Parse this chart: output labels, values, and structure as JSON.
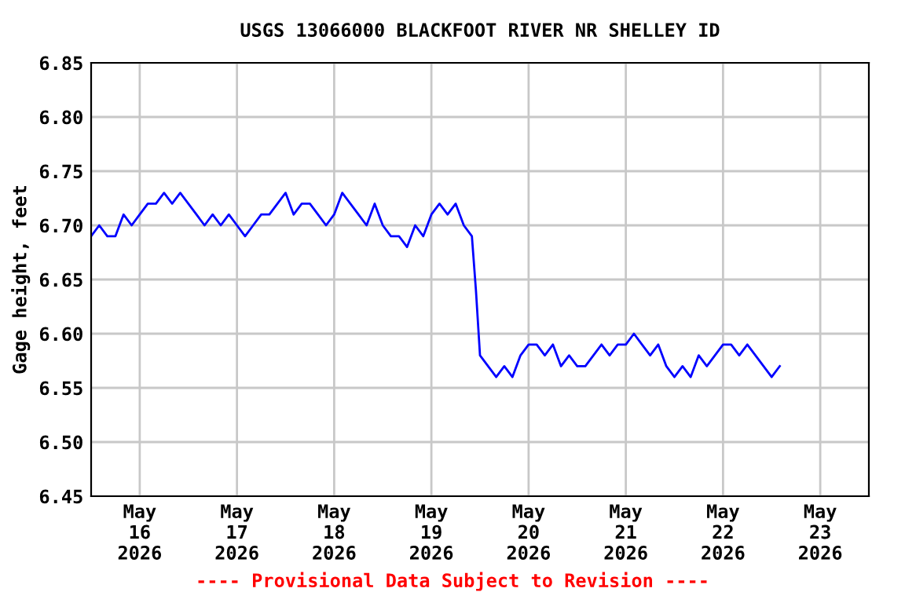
{
  "chart_data": {
    "type": "line",
    "title": "USGS 13066000 BLACKFOOT RIVER NR SHELLEY ID",
    "ylabel": "Gage height, feet",
    "annotations": [
      "---- Provisional Data Subject to Revision ----"
    ],
    "series": [
      {
        "color": "#0000ff",
        "x": [
          "2026-05-15T12:00",
          "2026-05-15T14:00",
          "2026-05-15T16:00",
          "2026-05-15T18:00",
          "2026-05-15T20:00",
          "2026-05-15T22:00",
          "2026-05-16T00:00",
          "2026-05-16T02:00",
          "2026-05-16T04:00",
          "2026-05-16T06:00",
          "2026-05-16T08:00",
          "2026-05-16T10:00",
          "2026-05-16T12:00",
          "2026-05-16T14:00",
          "2026-05-16T16:00",
          "2026-05-16T18:00",
          "2026-05-16T20:00",
          "2026-05-16T22:00",
          "2026-05-17T00:00",
          "2026-05-17T02:00",
          "2026-05-17T04:00",
          "2026-05-17T06:00",
          "2026-05-17T08:00",
          "2026-05-17T10:00",
          "2026-05-17T12:00",
          "2026-05-17T14:00",
          "2026-05-17T16:00",
          "2026-05-17T18:00",
          "2026-05-17T20:00",
          "2026-05-17T22:00",
          "2026-05-18T00:00",
          "2026-05-18T02:00",
          "2026-05-18T04:00",
          "2026-05-18T06:00",
          "2026-05-18T08:00",
          "2026-05-18T10:00",
          "2026-05-18T12:00",
          "2026-05-18T14:00",
          "2026-05-18T16:00",
          "2026-05-18T18:00",
          "2026-05-18T20:00",
          "2026-05-18T22:00",
          "2026-05-19T00:00",
          "2026-05-19T02:00",
          "2026-05-19T04:00",
          "2026-05-19T06:00",
          "2026-05-19T08:00",
          "2026-05-19T10:00",
          "2026-05-19T11:00",
          "2026-05-19T12:00",
          "2026-05-19T14:00",
          "2026-05-19T16:00",
          "2026-05-19T18:00",
          "2026-05-19T20:00",
          "2026-05-19T22:00",
          "2026-05-20T00:00",
          "2026-05-20T02:00",
          "2026-05-20T04:00",
          "2026-05-20T06:00",
          "2026-05-20T08:00",
          "2026-05-20T10:00",
          "2026-05-20T12:00",
          "2026-05-20T14:00",
          "2026-05-20T16:00",
          "2026-05-20T18:00",
          "2026-05-20T20:00",
          "2026-05-20T22:00",
          "2026-05-21T00:00",
          "2026-05-21T02:00",
          "2026-05-21T04:00",
          "2026-05-21T06:00",
          "2026-05-21T08:00",
          "2026-05-21T10:00",
          "2026-05-21T12:00",
          "2026-05-21T14:00",
          "2026-05-21T16:00",
          "2026-05-21T18:00",
          "2026-05-21T20:00",
          "2026-05-21T22:00",
          "2026-05-22T00:00",
          "2026-05-22T02:00",
          "2026-05-22T04:00",
          "2026-05-22T06:00",
          "2026-05-22T08:00",
          "2026-05-22T10:00",
          "2026-05-22T12:00",
          "2026-05-22T14:00"
        ],
        "values": [
          6.69,
          6.7,
          6.69,
          6.69,
          6.71,
          6.7,
          6.71,
          6.72,
          6.72,
          6.73,
          6.72,
          6.73,
          6.72,
          6.71,
          6.7,
          6.71,
          6.7,
          6.71,
          6.7,
          6.69,
          6.7,
          6.71,
          6.71,
          6.72,
          6.73,
          6.71,
          6.72,
          6.72,
          6.71,
          6.7,
          6.71,
          6.73,
          6.72,
          6.71,
          6.7,
          6.72,
          6.7,
          6.69,
          6.69,
          6.68,
          6.7,
          6.69,
          6.71,
          6.72,
          6.71,
          6.72,
          6.7,
          6.69,
          6.64,
          6.58,
          6.57,
          6.56,
          6.57,
          6.56,
          6.58,
          6.59,
          6.59,
          6.58,
          6.59,
          6.57,
          6.58,
          6.57,
          6.57,
          6.58,
          6.59,
          6.58,
          6.59,
          6.59,
          6.6,
          6.59,
          6.58,
          6.59,
          6.57,
          6.56,
          6.57,
          6.56,
          6.58,
          6.57,
          6.58,
          6.59,
          6.59,
          6.58,
          6.59,
          6.58,
          6.57,
          6.56,
          6.57
        ]
      }
    ],
    "xlim": [
      "2026-05-15T12:00",
      "2026-05-23T12:00"
    ],
    "xticks": [
      {
        "value": "2026-05-16",
        "label": "May\n16\n2026"
      },
      {
        "value": "2026-05-17",
        "label": "May\n17\n2026"
      },
      {
        "value": "2026-05-18",
        "label": "May\n18\n2026"
      },
      {
        "value": "2026-05-19",
        "label": "May\n19\n2026"
      },
      {
        "value": "2026-05-20",
        "label": "May\n20\n2026"
      },
      {
        "value": "2026-05-21",
        "label": "May\n21\n2026"
      },
      {
        "value": "2026-05-22",
        "label": "May\n22\n2026"
      },
      {
        "value": "2026-05-23",
        "label": "May\n23\n2026"
      }
    ],
    "ylim": [
      6.45,
      6.85
    ],
    "yticks": [
      {
        "value": 6.45,
        "label": "6.45"
      },
      {
        "value": 6.5,
        "label": "6.50"
      },
      {
        "value": 6.55,
        "label": "6.55"
      },
      {
        "value": 6.6,
        "label": "6.60"
      },
      {
        "value": 6.65,
        "label": "6.65"
      },
      {
        "value": 6.7,
        "label": "6.70"
      },
      {
        "value": 6.75,
        "label": "6.75"
      },
      {
        "value": 6.8,
        "label": "6.80"
      },
      {
        "value": 6.85,
        "label": "6.85"
      }
    ],
    "grid": true,
    "legend": false,
    "marker": "none",
    "line_style": "solid"
  }
}
